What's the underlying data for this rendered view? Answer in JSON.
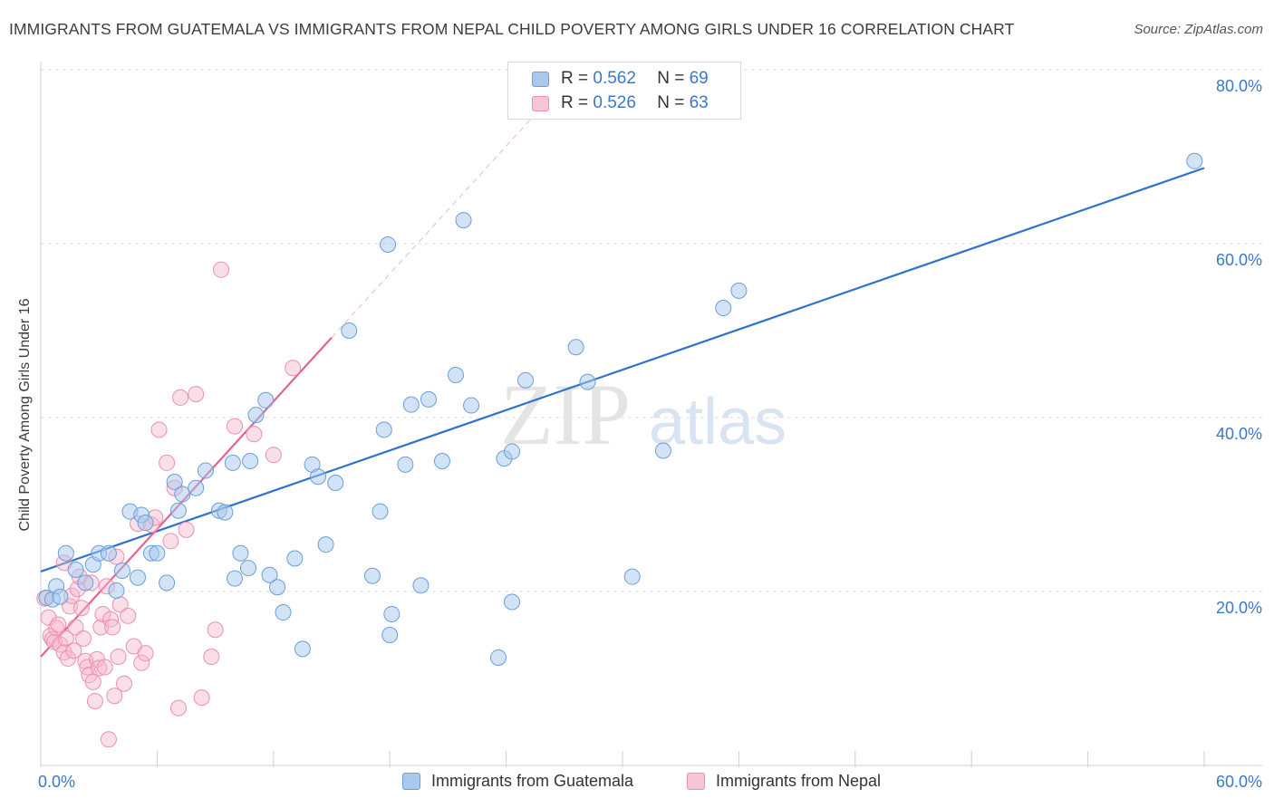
{
  "title": "IMMIGRANTS FROM GUATEMALA VS IMMIGRANTS FROM NEPAL CHILD POVERTY AMONG GIRLS UNDER 16 CORRELATION CHART",
  "source": "Source: ZipAtlas.com",
  "watermark": {
    "zip": "ZIP",
    "atlas": "atlas"
  },
  "legend": {
    "rows": [
      {
        "r_label": "R = ",
        "r_value": "0.562",
        "n_label": "N = ",
        "n_value": "69"
      },
      {
        "r_label": "R = ",
        "r_value": "0.526",
        "n_label": "N = ",
        "n_value": "63"
      }
    ]
  },
  "colors": {
    "guatemala_fill": "#a8c8ee",
    "guatemala_stroke": "#6a9fdc",
    "guatemala_line": "#2f72cc",
    "nepal_fill": "#f7b8cc",
    "nepal_stroke": "#ee8fae",
    "nepal_line": "#e5628e",
    "axis_label": "#3b78c9",
    "grid": "#dcdcdc"
  },
  "chart_data": {
    "type": "scatter",
    "title": "IMMIGRANTS FROM GUATEMALA VS IMMIGRANTS FROM NEPAL CHILD POVERTY AMONG GIRLS UNDER 16 CORRELATION CHART",
    "xlabel": "",
    "ylabel": "Child Poverty Among Girls Under 16",
    "xlim": [
      0,
      60
    ],
    "ylim": [
      0,
      80
    ],
    "x_tick_labels": [
      "0.0%",
      "60.0%"
    ],
    "y_tick_labels": [
      "20.0%",
      "40.0%",
      "60.0%",
      "80.0%"
    ],
    "y_ticks": [
      20,
      40,
      60,
      80
    ],
    "grid": true,
    "legend_position": "bottom",
    "series": [
      {
        "name": "Immigrants from Guatemala",
        "R": 0.562,
        "N": 69,
        "trend": {
          "x": [
            0,
            60
          ],
          "y": [
            22.3,
            68.7
          ]
        },
        "points": [
          [
            0.3,
            19.3
          ],
          [
            0.6,
            19.1
          ],
          [
            0.8,
            20.6
          ],
          [
            1.0,
            19.4
          ],
          [
            1.3,
            24.4
          ],
          [
            1.8,
            22.5
          ],
          [
            2.3,
            21.0
          ],
          [
            2.7,
            23.1
          ],
          [
            3.0,
            24.4
          ],
          [
            3.5,
            24.4
          ],
          [
            3.9,
            20.1
          ],
          [
            4.2,
            22.4
          ],
          [
            4.6,
            29.2
          ],
          [
            5.0,
            21.6
          ],
          [
            5.2,
            28.8
          ],
          [
            5.4,
            27.9
          ],
          [
            5.7,
            24.4
          ],
          [
            6.0,
            24.4
          ],
          [
            6.5,
            21.0
          ],
          [
            6.9,
            32.6
          ],
          [
            7.1,
            29.3
          ],
          [
            7.3,
            31.2
          ],
          [
            8.0,
            31.9
          ],
          [
            8.5,
            33.9
          ],
          [
            9.2,
            29.3
          ],
          [
            9.5,
            29.1
          ],
          [
            9.9,
            34.8
          ],
          [
            10.0,
            21.5
          ],
          [
            10.3,
            24.4
          ],
          [
            10.7,
            22.7
          ],
          [
            10.8,
            35.0
          ],
          [
            11.1,
            40.3
          ],
          [
            11.6,
            42.0
          ],
          [
            11.8,
            21.9
          ],
          [
            12.2,
            20.5
          ],
          [
            12.5,
            17.6
          ],
          [
            13.1,
            23.8
          ],
          [
            13.5,
            13.4
          ],
          [
            14.0,
            34.6
          ],
          [
            14.3,
            33.2
          ],
          [
            14.7,
            25.4
          ],
          [
            15.2,
            32.5
          ],
          [
            15.9,
            50.0
          ],
          [
            17.1,
            21.8
          ],
          [
            17.5,
            29.2
          ],
          [
            17.7,
            38.6
          ],
          [
            17.9,
            59.9
          ],
          [
            18.0,
            15.0
          ],
          [
            18.1,
            17.4
          ],
          [
            18.8,
            34.6
          ],
          [
            19.1,
            41.5
          ],
          [
            19.6,
            20.7
          ],
          [
            20.0,
            42.1
          ],
          [
            20.7,
            35.0
          ],
          [
            21.4,
            44.9
          ],
          [
            21.8,
            62.7
          ],
          [
            22.2,
            41.4
          ],
          [
            23.6,
            12.4
          ],
          [
            23.9,
            35.3
          ],
          [
            24.3,
            36.1
          ],
          [
            24.3,
            18.8
          ],
          [
            25.0,
            44.3
          ],
          [
            27.6,
            48.1
          ],
          [
            28.2,
            44.1
          ],
          [
            30.5,
            21.7
          ],
          [
            32.1,
            36.2
          ],
          [
            35.2,
            52.6
          ],
          [
            36.0,
            54.6
          ],
          [
            59.5,
            69.5
          ]
        ]
      },
      {
        "name": "Immigrants from Nepal",
        "R": 0.526,
        "N": 63,
        "trend": {
          "x": [
            0,
            15
          ],
          "y": [
            12.5,
            49.2
          ]
        },
        "points": [
          [
            0.2,
            19.2
          ],
          [
            0.4,
            17.0
          ],
          [
            0.5,
            14.9
          ],
          [
            0.6,
            14.5
          ],
          [
            0.7,
            14.2
          ],
          [
            0.8,
            15.8
          ],
          [
            0.9,
            16.2
          ],
          [
            1.0,
            13.9
          ],
          [
            1.2,
            13.0
          ],
          [
            1.3,
            14.6
          ],
          [
            1.4,
            12.3
          ],
          [
            1.5,
            18.3
          ],
          [
            1.6,
            19.5
          ],
          [
            1.7,
            13.2
          ],
          [
            1.8,
            15.9
          ],
          [
            1.9,
            20.3
          ],
          [
            2.0,
            21.7
          ],
          [
            2.1,
            18.1
          ],
          [
            2.2,
            14.6
          ],
          [
            2.3,
            12.0
          ],
          [
            2.4,
            11.3
          ],
          [
            2.5,
            10.4
          ],
          [
            2.6,
            21.0
          ],
          [
            2.7,
            9.6
          ],
          [
            2.8,
            7.4
          ],
          [
            2.9,
            12.2
          ],
          [
            3.0,
            11.2
          ],
          [
            3.1,
            15.9
          ],
          [
            3.2,
            17.4
          ],
          [
            3.3,
            11.3
          ],
          [
            3.4,
            20.6
          ],
          [
            3.6,
            16.8
          ],
          [
            3.7,
            15.9
          ],
          [
            3.8,
            8.0
          ],
          [
            3.9,
            24.0
          ],
          [
            4.0,
            12.5
          ],
          [
            4.1,
            18.5
          ],
          [
            4.3,
            9.4
          ],
          [
            4.5,
            17.2
          ],
          [
            4.8,
            13.7
          ],
          [
            5.0,
            27.8
          ],
          [
            5.2,
            11.8
          ],
          [
            5.4,
            12.9
          ],
          [
            5.7,
            27.7
          ],
          [
            5.9,
            28.5
          ],
          [
            6.1,
            38.6
          ],
          [
            6.5,
            34.8
          ],
          [
            6.7,
            25.8
          ],
          [
            6.9,
            31.9
          ],
          [
            7.2,
            42.3
          ],
          [
            7.5,
            27.1
          ],
          [
            8.0,
            42.7
          ],
          [
            8.3,
            7.8
          ],
          [
            8.8,
            12.5
          ],
          [
            9.0,
            15.6
          ],
          [
            9.3,
            57.0
          ],
          [
            10.0,
            39.0
          ],
          [
            11.0,
            38.1
          ],
          [
            12.0,
            35.7
          ],
          [
            13.0,
            45.7
          ],
          [
            3.5,
            3.0
          ],
          [
            7.1,
            6.6
          ],
          [
            1.2,
            23.3
          ]
        ]
      }
    ]
  },
  "bottom_legend": [
    "Immigrants from Guatemala",
    "Immigrants from Nepal"
  ]
}
